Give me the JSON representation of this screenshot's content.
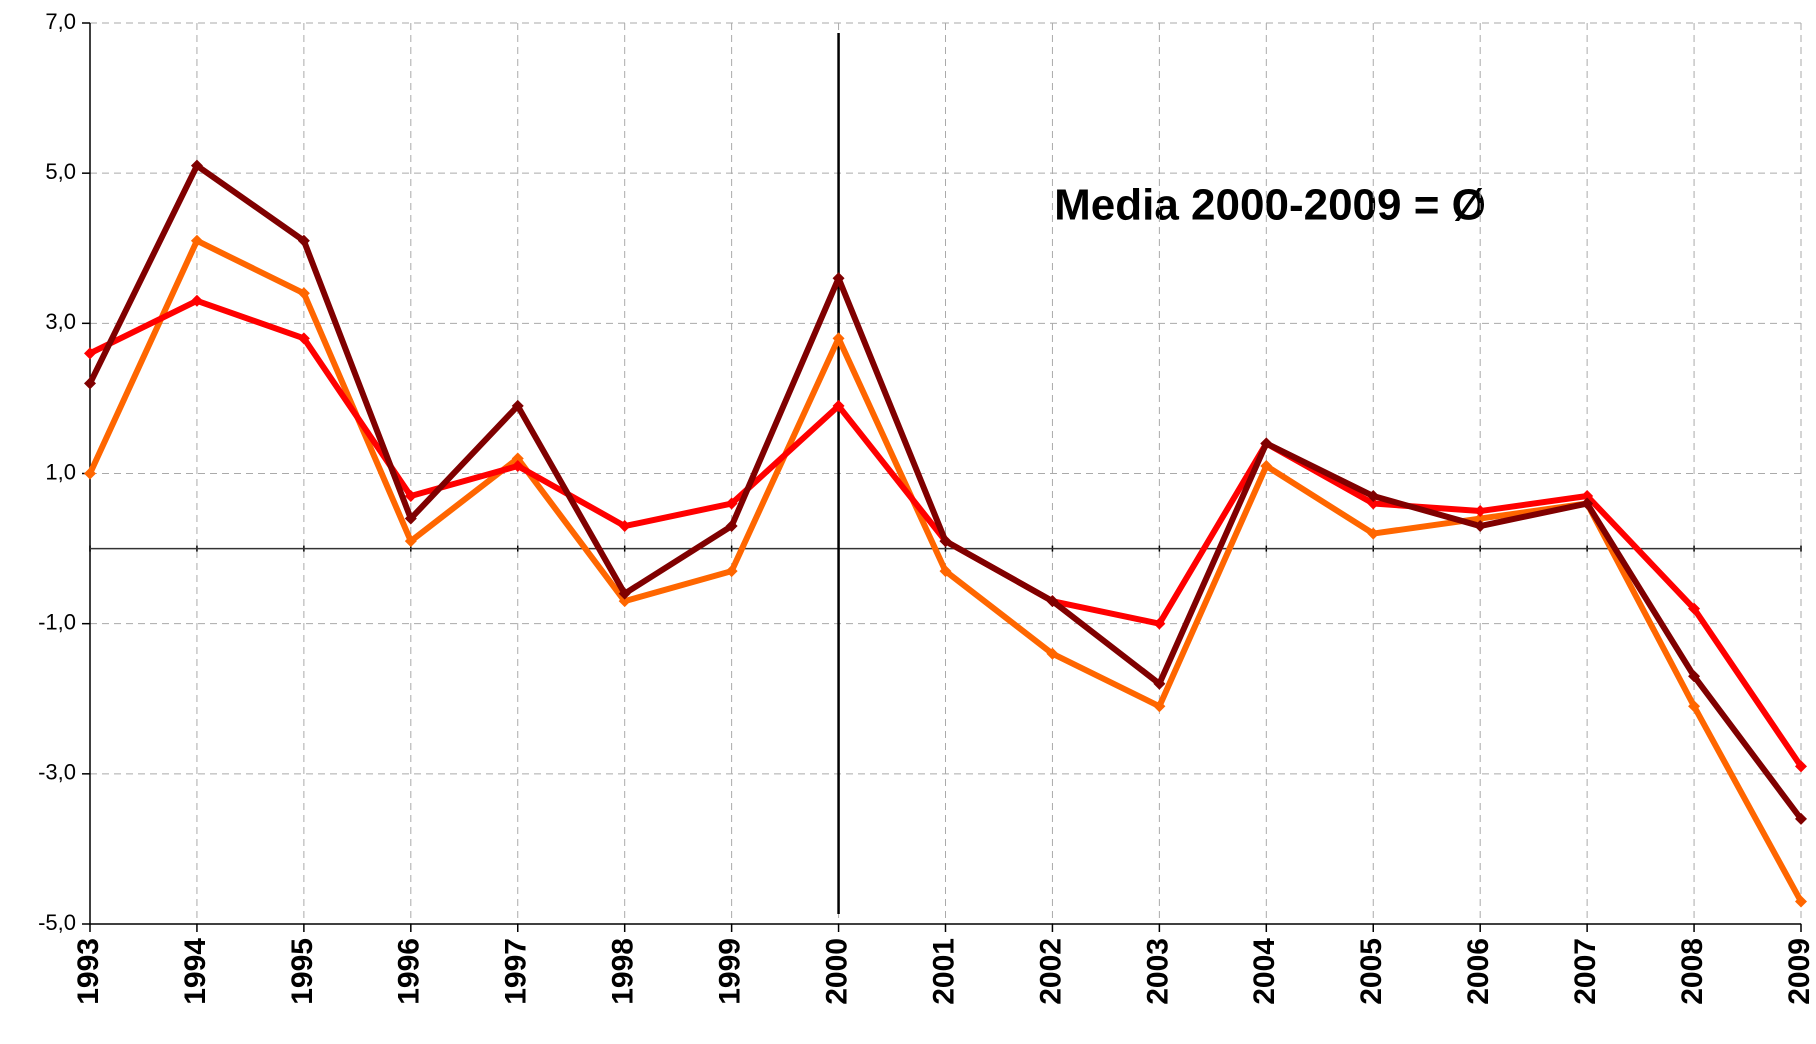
{
  "chart_data": {
    "type": "line",
    "annotation": "Media 2000-2009 = Ø",
    "categories": [
      "1993",
      "1994",
      "1995",
      "1996",
      "1997",
      "1998",
      "1999",
      "2000",
      "2001",
      "2002",
      "2003",
      "2004",
      "2005",
      "2006",
      "2007",
      "2008",
      "2009"
    ],
    "series": [
      {
        "color": "#ff6600",
        "values": [
          1.0,
          4.1,
          3.4,
          0.1,
          1.2,
          -0.7,
          -0.3,
          2.8,
          -0.3,
          -1.4,
          -2.1,
          1.1,
          0.2,
          0.4,
          0.6,
          -2.1,
          -4.7
        ]
      },
      {
        "color": "#ff0000",
        "values": [
          2.6,
          3.3,
          2.8,
          0.7,
          1.1,
          0.3,
          0.6,
          1.9,
          0.1,
          -0.7,
          -1.0,
          1.4,
          0.6,
          0.5,
          0.7,
          -0.8,
          -2.9
        ]
      },
      {
        "color": "#800000",
        "values": [
          2.2,
          5.1,
          4.1,
          0.4,
          1.9,
          -0.6,
          0.3,
          3.6,
          0.1,
          -0.7,
          -1.8,
          1.4,
          0.7,
          0.3,
          0.6,
          -1.7,
          -3.6
        ]
      }
    ],
    "ylim": [
      -5,
      7
    ],
    "yticks": [
      {
        "value": -5,
        "label": "-5,0"
      },
      {
        "value": -3,
        "label": "-3,0"
      },
      {
        "value": -1,
        "label": "-1,0"
      },
      {
        "value": 1,
        "label": "1,0"
      },
      {
        "value": 3,
        "label": "3,0"
      },
      {
        "value": 5,
        "label": "5,0"
      },
      {
        "value": 7,
        "label": "7,0"
      }
    ],
    "grid": true,
    "reference_line_x": "2000"
  }
}
